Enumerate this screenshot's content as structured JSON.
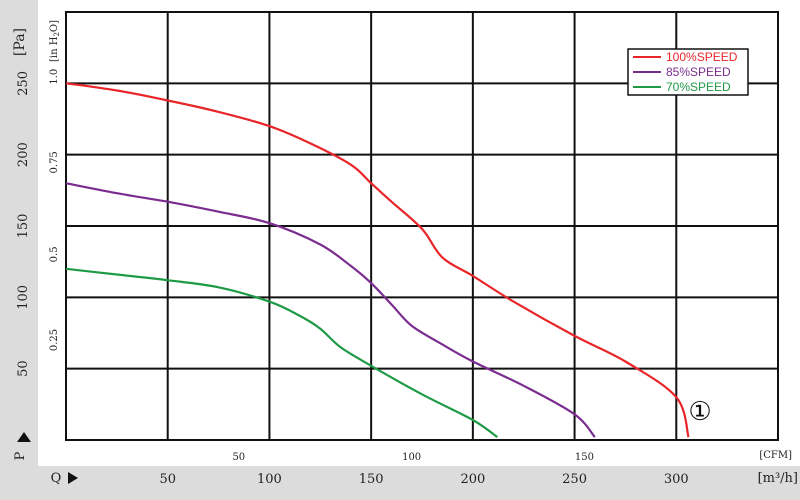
{
  "chart_data": {
    "type": "line",
    "units": {
      "pressure_pa": "[Pa]",
      "pressure_inh2o_prefix": "[in H",
      "pressure_inh2o_sub": "2",
      "pressure_inh2o_suffix": "O]",
      "flow_cfm": "[CFM]",
      "flow_m3h": "[m³/h]"
    },
    "axis_symbols": {
      "pressure": "P",
      "flow": "Q"
    },
    "x_m3h_ticks": [
      50,
      100,
      150,
      200,
      250,
      300
    ],
    "x_cfm_ticks": [
      50,
      100,
      150
    ],
    "y_pa_ticks": [
      50,
      100,
      150,
      200,
      250
    ],
    "y_inh2o_ticks": [
      "0.25",
      "0.5",
      "0.75",
      "1.0"
    ],
    "xlim_m3h": [
      0,
      350
    ],
    "ylim_pa": [
      0,
      300
    ],
    "grid": true,
    "legend_position": "top-right",
    "series": [
      {
        "name": "100%SPEED",
        "color": "#e8262a",
        "x": [
          0,
          25,
          50,
          75,
          100,
          120,
          140,
          150,
          160,
          175,
          185,
          200,
          220,
          250,
          275,
          300,
          306
        ],
        "y": [
          250,
          245,
          238,
          230,
          220,
          208,
          193,
          180,
          167,
          148,
          128,
          115,
          97,
          73,
          55,
          30,
          2
        ]
      },
      {
        "name": "85%SPEED",
        "color": "#7b2d8f",
        "x": [
          0,
          25,
          50,
          75,
          100,
          125,
          140,
          150,
          160,
          170,
          185,
          200,
          225,
          250,
          260
        ],
        "y": [
          180,
          173,
          167,
          160,
          152,
          137,
          122,
          110,
          95,
          80,
          67,
          55,
          38,
          18,
          2
        ]
      },
      {
        "name": "70%SPEED",
        "color": "#1f9a46",
        "x": [
          0,
          25,
          50,
          75,
          100,
          115,
          125,
          135,
          150,
          175,
          200,
          212
        ],
        "y": [
          120,
          116,
          112,
          107,
          97,
          87,
          78,
          65,
          52,
          32,
          14,
          2
        ]
      }
    ],
    "annotation": "①"
  }
}
